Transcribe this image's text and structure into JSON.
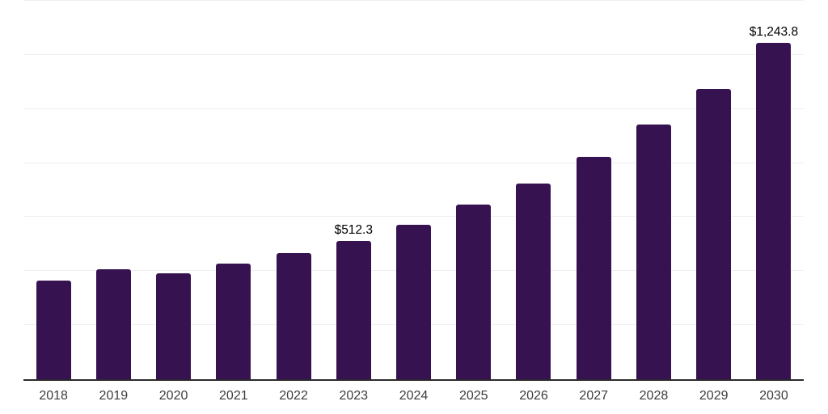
{
  "chart_data": {
    "type": "bar",
    "title": "",
    "xlabel": "",
    "ylabel": "",
    "categories": [
      "2018",
      "2019",
      "2020",
      "2021",
      "2022",
      "2023",
      "2024",
      "2025",
      "2026",
      "2027",
      "2028",
      "2029",
      "2030"
    ],
    "values": [
      364,
      408,
      391,
      428,
      467,
      512.3,
      572,
      645,
      724,
      824,
      941,
      1075,
      1243.8
    ],
    "data_labels": [
      null,
      null,
      null,
      null,
      null,
      "$512.3",
      null,
      null,
      null,
      null,
      null,
      null,
      "$1,243.8"
    ],
    "ylim": [
      0,
      1400
    ],
    "gridline_interval": 200,
    "grid": true,
    "legend": false,
    "colors": {
      "background": "#ffffff",
      "bar": "#371250",
      "axis": "#2b2b2b",
      "gridline": "#efefef",
      "tick_label": "#3c3c3c",
      "data_label": "#000000"
    }
  }
}
